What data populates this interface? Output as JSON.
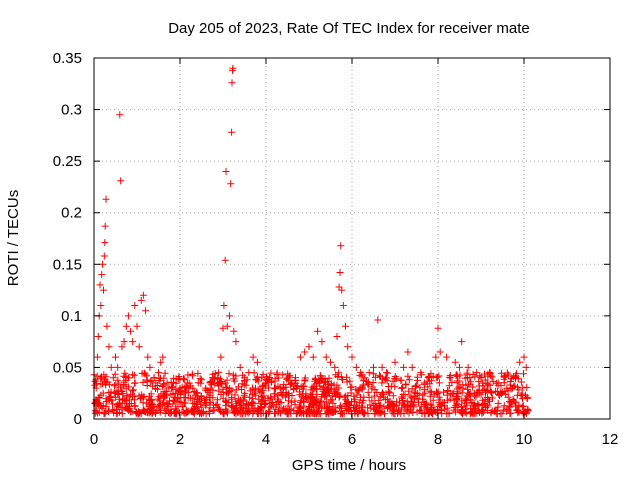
{
  "chart_data": {
    "type": "scatter",
    "title": "Day 205 of 2023, Rate Of TEC Index for receiver mate",
    "xlabel": "GPS time / hours",
    "ylabel": "ROTI / TECUs",
    "xlim": [
      0,
      12
    ],
    "ylim": [
      0,
      0.35
    ],
    "xticks": [
      0,
      2,
      4,
      6,
      8,
      10,
      12
    ],
    "yticks": [
      0,
      0.05,
      0.1,
      0.15,
      0.2,
      0.25,
      0.3,
      0.35
    ],
    "xtick_labels": [
      "0",
      "2",
      "4",
      "6",
      "8",
      "10",
      "12"
    ],
    "ytick_labels": [
      "0",
      "0.05",
      "0.1",
      "0.15",
      "0.2",
      "0.25",
      "0.3",
      "0.35"
    ],
    "grid": true,
    "marker": "+",
    "color": "#ff0000",
    "series": [
      {
        "name": "ROTI",
        "points": [
          [
            0.02,
            0.015
          ],
          [
            0.05,
            0.03
          ],
          [
            0.08,
            0.06
          ],
          [
            0.1,
            0.08
          ],
          [
            0.12,
            0.1
          ],
          [
            0.14,
            0.13
          ],
          [
            0.16,
            0.11
          ],
          [
            0.18,
            0.14
          ],
          [
            0.2,
            0.15
          ],
          [
            0.22,
            0.125
          ],
          [
            0.24,
            0.158
          ],
          [
            0.25,
            0.171
          ],
          [
            0.26,
            0.187
          ],
          [
            0.28,
            0.213
          ],
          [
            0.3,
            0.09
          ],
          [
            0.35,
            0.07
          ],
          [
            0.4,
            0.05
          ],
          [
            0.45,
            0.04
          ],
          [
            0.5,
            0.06
          ],
          [
            0.55,
            0.05
          ],
          [
            0.6,
            0.295
          ],
          [
            0.62,
            0.231
          ],
          [
            0.65,
            0.07
          ],
          [
            0.7,
            0.075
          ],
          [
            0.75,
            0.09
          ],
          [
            0.8,
            0.1
          ],
          [
            0.85,
            0.085
          ],
          [
            0.9,
            0.075
          ],
          [
            0.95,
            0.11
          ],
          [
            1.0,
            0.09
          ],
          [
            1.05,
            0.07
          ],
          [
            1.1,
            0.115
          ],
          [
            1.15,
            0.12
          ],
          [
            1.2,
            0.105
          ],
          [
            1.25,
            0.06
          ],
          [
            1.3,
            0.05
          ],
          [
            1.4,
            0.04
          ],
          [
            1.5,
            0.045
          ],
          [
            1.55,
            0.055
          ],
          [
            1.6,
            0.06
          ],
          [
            1.7,
            0.035
          ],
          [
            1.8,
            0.03
          ],
          [
            1.9,
            0.025
          ],
          [
            2.0,
            0.03
          ],
          [
            2.1,
            0.025
          ],
          [
            2.2,
            0.03
          ],
          [
            2.3,
            0.02
          ],
          [
            2.4,
            0.025
          ],
          [
            2.5,
            0.02
          ],
          [
            2.6,
            0.03
          ],
          [
            2.7,
            0.035
          ],
          [
            2.8,
            0.04
          ],
          [
            2.9,
            0.045
          ],
          [
            2.95,
            0.06
          ],
          [
            3.0,
            0.088
          ],
          [
            3.02,
            0.11
          ],
          [
            3.05,
            0.154
          ],
          [
            3.07,
            0.24
          ],
          [
            3.1,
            0.09
          ],
          [
            3.15,
            0.1
          ],
          [
            3.18,
            0.228
          ],
          [
            3.2,
            0.278
          ],
          [
            3.21,
            0.326
          ],
          [
            3.22,
            0.338
          ],
          [
            3.23,
            0.34
          ],
          [
            3.25,
            0.085
          ],
          [
            3.3,
            0.075
          ],
          [
            3.4,
            0.05
          ],
          [
            3.5,
            0.04
          ],
          [
            3.6,
            0.045
          ],
          [
            3.7,
            0.06
          ],
          [
            3.8,
            0.055
          ],
          [
            3.9,
            0.04
          ],
          [
            4.0,
            0.035
          ],
          [
            4.2,
            0.03
          ],
          [
            4.4,
            0.03
          ],
          [
            4.6,
            0.035
          ],
          [
            4.8,
            0.06
          ],
          [
            4.9,
            0.065
          ],
          [
            5.0,
            0.07
          ],
          [
            5.1,
            0.06
          ],
          [
            5.2,
            0.085
          ],
          [
            5.3,
            0.075
          ],
          [
            5.4,
            0.06
          ],
          [
            5.5,
            0.055
          ],
          [
            5.6,
            0.05
          ],
          [
            5.65,
            0.08
          ],
          [
            5.7,
            0.128
          ],
          [
            5.72,
            0.142
          ],
          [
            5.74,
            0.168
          ],
          [
            5.76,
            0.125
          ],
          [
            5.8,
            0.11
          ],
          [
            5.85,
            0.09
          ],
          [
            5.9,
            0.07
          ],
          [
            6.0,
            0.06
          ],
          [
            6.1,
            0.05
          ],
          [
            6.2,
            0.045
          ],
          [
            6.3,
            0.04
          ],
          [
            6.4,
            0.045
          ],
          [
            6.5,
            0.05
          ],
          [
            6.6,
            0.096
          ],
          [
            6.7,
            0.05
          ],
          [
            6.8,
            0.045
          ],
          [
            7.0,
            0.055
          ],
          [
            7.2,
            0.05
          ],
          [
            7.3,
            0.065
          ],
          [
            7.4,
            0.05
          ],
          [
            7.6,
            0.045
          ],
          [
            7.8,
            0.04
          ],
          [
            7.95,
            0.06
          ],
          [
            8.0,
            0.088
          ],
          [
            8.05,
            0.065
          ],
          [
            8.2,
            0.06
          ],
          [
            8.4,
            0.055
          ],
          [
            8.5,
            0.05
          ],
          [
            8.55,
            0.075
          ],
          [
            8.7,
            0.05
          ],
          [
            8.9,
            0.045
          ],
          [
            9.0,
            0.04
          ],
          [
            9.2,
            0.045
          ],
          [
            9.4,
            0.035
          ],
          [
            9.6,
            0.03
          ],
          [
            9.8,
            0.04
          ],
          [
            9.9,
            0.055
          ],
          [
            10.0,
            0.06
          ],
          [
            10.05,
            0.05
          ],
          [
            10.08,
            0.02
          ]
        ],
        "baseline_band": {
          "x_range": [
            0.0,
            10.1
          ],
          "y_min": 0.005,
          "y_max": 0.045
        }
      }
    ]
  }
}
